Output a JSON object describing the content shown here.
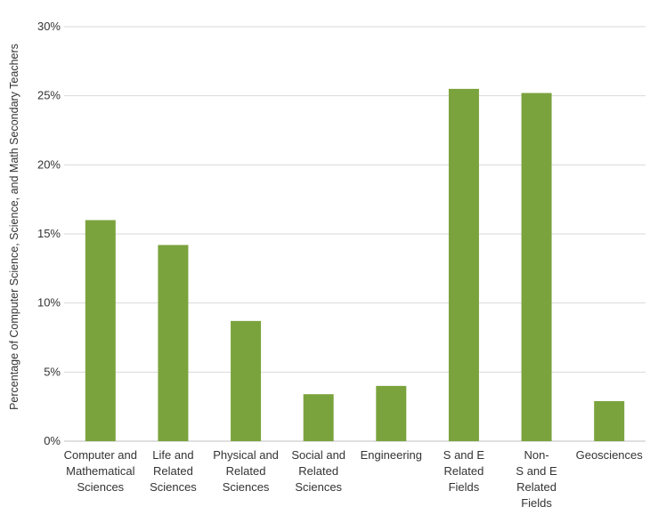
{
  "chart_data": {
    "type": "bar",
    "title": "",
    "xlabel": "",
    "ylabel": "Percentage of Computer Science, Science, and Math Secondary Teachers",
    "categories": [
      "Computer and Mathematical Sciences",
      "Life and Related Sciences",
      "Physical and Related Sciences",
      "Social and Related Sciences",
      "Engineering",
      "S and E Related Fields",
      "Non- S and E Related Fields",
      "Geosciences"
    ],
    "category_label_lines": [
      [
        "Computer and",
        "Mathematical",
        "Sciences"
      ],
      [
        "Life and",
        "Related",
        "Sciences"
      ],
      [
        "Physical and",
        "Related",
        "Sciences"
      ],
      [
        "Social and",
        "Related",
        "Sciences"
      ],
      [
        "Engineering"
      ],
      [
        "S and E",
        "Related",
        "Fields"
      ],
      [
        "Non-",
        "S and E",
        "Related",
        "Fields"
      ],
      [
        "Geosciences"
      ]
    ],
    "values": [
      16.0,
      14.2,
      8.7,
      3.4,
      4.0,
      25.5,
      25.2,
      2.9
    ],
    "ylim": [
      0,
      30
    ],
    "yticks": [
      0,
      5,
      10,
      15,
      20,
      25,
      30
    ],
    "ytick_labels": [
      "0%",
      "5%",
      "10%",
      "15%",
      "20%",
      "25%",
      "30%"
    ],
    "grid": true,
    "legend": "none",
    "bar_color": "#7ba33d",
    "grid_color": "#d9d9d9"
  }
}
